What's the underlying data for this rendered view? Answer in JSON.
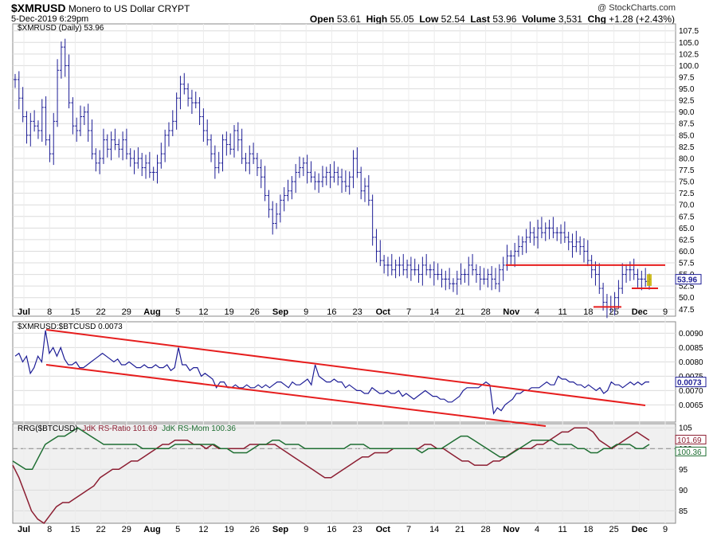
{
  "header": {
    "symbol": "$XMRUSD",
    "name": "Monero to US Dollar",
    "exchange": "CRYPT",
    "date": "5-Dec-2019 6:29pm",
    "watermark": "@ StockCharts.com",
    "open_label": "Open",
    "open": "53.61",
    "high_label": "High",
    "high": "55.05",
    "low_label": "Low",
    "low": "52.54",
    "last_label": "Last",
    "last": "53.96",
    "volume_label": "Volume",
    "volume": "3,531",
    "chg_label": "Chg",
    "chg": "+1.28 (+2.43%)"
  },
  "colors": {
    "series": "#1e1e96",
    "trend": "#e61e1e",
    "ratio": "#8c1e32",
    "momentum": "#1e6e32",
    "panel_bg": "#f0f0f0",
    "last_box": "#c8b400"
  },
  "chart_data": [
    {
      "type": "ohlc",
      "legend": "$XMRUSD (Daily) 53.96",
      "last_value_label": "53.96",
      "ylim": [
        46,
        109
      ],
      "y_ticks": [
        "107.5",
        "105.0",
        "102.5",
        "100.0",
        "97.5",
        "95.0",
        "92.5",
        "90.0",
        "87.5",
        "85.0",
        "82.5",
        "80.0",
        "77.5",
        "75.0",
        "72.5",
        "70.0",
        "67.5",
        "65.0",
        "62.5",
        "60.0",
        "57.5",
        "55.0",
        "52.5",
        "50.0",
        "47.5"
      ],
      "x_ticks": [
        "Jul",
        "8",
        "15",
        "22",
        "29",
        "Aug",
        "5",
        "12",
        "19",
        "26",
        "Sep",
        "9",
        "16",
        "23",
        "Oct",
        "7",
        "14",
        "21",
        "28",
        "Nov",
        "4",
        "11",
        "18",
        "25",
        "Dec",
        "9"
      ],
      "close_approx": [
        97,
        93,
        89,
        85,
        88,
        87,
        86,
        91,
        84,
        81,
        88,
        99,
        104,
        100,
        92,
        87,
        86,
        89,
        90,
        86,
        81,
        79,
        80,
        84,
        82,
        84,
        83,
        82,
        84,
        81,
        80,
        79,
        80,
        78,
        79,
        77,
        77,
        79,
        81,
        85,
        86,
        88,
        93,
        96,
        95,
        93,
        92,
        92,
        89,
        86,
        84,
        81,
        78,
        79,
        84,
        83,
        82,
        86,
        84,
        80,
        79,
        81,
        80,
        78,
        76,
        72,
        69,
        66,
        68,
        71,
        72,
        73,
        75,
        77,
        78,
        79,
        77,
        76,
        75,
        75,
        76,
        77,
        76,
        77,
        76,
        75,
        74,
        76,
        80,
        77,
        73,
        74,
        71,
        63,
        60,
        58,
        57,
        57,
        56,
        57,
        57,
        56,
        57,
        56,
        56,
        55,
        57,
        56,
        56,
        55,
        55,
        54,
        54,
        53,
        53,
        54,
        55,
        55,
        57,
        56,
        55,
        54,
        54,
        55,
        54,
        53,
        56,
        57,
        59,
        59,
        60,
        61,
        62,
        63,
        64,
        63,
        65,
        64,
        65,
        65,
        64,
        64,
        64,
        63,
        62,
        61,
        62,
        61,
        60,
        58,
        56,
        55,
        52,
        49,
        48,
        48,
        50,
        52,
        55,
        56,
        56,
        55,
        54,
        54,
        53.5,
        53.96
      ],
      "support_resistance": [
        57,
        52,
        48
      ]
    },
    {
      "type": "line",
      "legend": "$XMRUSD:$BTCUSD 0.0073",
      "last_value_label": "0.0073",
      "ylim": [
        0.0059,
        0.0094
      ],
      "y_ticks": [
        "0.0090",
        "0.0085",
        "0.0080",
        "0.0075",
        "0.0070",
        "0.0065"
      ],
      "values": [
        0.0082,
        0.0083,
        0.008,
        0.0082,
        0.0076,
        0.0078,
        0.0082,
        0.008,
        0.0091,
        0.0083,
        0.0085,
        0.0082,
        0.0085,
        0.0081,
        0.0079,
        0.0079,
        0.008,
        0.0078,
        0.0078,
        0.0079,
        0.008,
        0.0081,
        0.0082,
        0.0083,
        0.0082,
        0.0081,
        0.008,
        0.0081,
        0.0079,
        0.0079,
        0.008,
        0.0079,
        0.0078,
        0.0078,
        0.0079,
        0.0078,
        0.0078,
        0.0079,
        0.0078,
        0.0078,
        0.0079,
        0.0077,
        0.0078,
        0.0085,
        0.0079,
        0.0079,
        0.0077,
        0.0078,
        0.0078,
        0.0075,
        0.0076,
        0.0075,
        0.0074,
        0.0071,
        0.0073,
        0.0073,
        0.0071,
        0.0071,
        0.0072,
        0.0071,
        0.0071,
        0.0072,
        0.0071,
        0.0071,
        0.0072,
        0.0071,
        0.0072,
        0.0071,
        0.0072,
        0.0073,
        0.0073,
        0.0072,
        0.0071,
        0.0073,
        0.0072,
        0.0072,
        0.0073,
        0.0074,
        0.0072,
        0.0079,
        0.0075,
        0.0074,
        0.0073,
        0.0073,
        0.0074,
        0.0073,
        0.0073,
        0.0071,
        0.0072,
        0.0071,
        0.007,
        0.007,
        0.0069,
        0.0069,
        0.0071,
        0.007,
        0.0069,
        0.0069,
        0.007,
        0.0069,
        0.0069,
        0.007,
        0.0068,
        0.0069,
        0.0068,
        0.0067,
        0.0068,
        0.0069,
        0.007,
        0.0069,
        0.0068,
        0.0068,
        0.0067,
        0.0067,
        0.0066,
        0.0066,
        0.0067,
        0.0068,
        0.007,
        0.0071,
        0.0071,
        0.0071,
        0.0071,
        0.0072,
        0.0073,
        0.0072,
        0.0062,
        0.0064,
        0.0063,
        0.0065,
        0.0066,
        0.0067,
        0.0069,
        0.0069,
        0.007,
        0.007,
        0.0071,
        0.0071,
        0.0071,
        0.0072,
        0.0073,
        0.0072,
        0.0072,
        0.0075,
        0.0074,
        0.0074,
        0.0073,
        0.0073,
        0.0072,
        0.0072,
        0.0071,
        0.0072,
        0.0071,
        0.007,
        0.0071,
        0.0069,
        0.007,
        0.0073,
        0.0072,
        0.0072,
        0.0071,
        0.0072,
        0.0073,
        0.0072,
        0.0073,
        0.0072,
        0.0073,
        0.0073
      ]
    },
    {
      "type": "line",
      "legend_prefix": "RRG($BTCUSD)",
      "series": [
        {
          "name": "JdK RS-Ratio 101.69",
          "last_value_label": "101.69",
          "values": [
            96,
            93,
            89,
            85,
            83,
            82,
            84,
            86,
            87,
            87,
            88,
            89,
            90,
            91,
            93,
            94,
            95,
            95,
            96,
            97,
            97,
            98,
            99,
            100,
            101,
            101,
            102,
            102,
            102,
            101,
            101,
            100,
            101,
            100,
            100,
            100,
            100,
            100,
            101,
            101,
            101,
            101,
            101,
            100,
            99,
            98,
            97,
            96,
            95,
            94,
            93,
            93,
            94,
            95,
            96,
            97,
            98,
            98,
            99,
            99,
            99,
            100,
            100,
            100,
            100,
            100,
            101,
            101,
            100,
            100,
            99,
            98,
            97,
            97,
            96,
            96,
            96,
            97,
            97,
            98,
            99,
            100,
            100,
            100,
            101,
            101,
            102,
            103,
            104,
            104,
            105,
            105,
            105,
            104,
            102,
            101,
            100,
            101,
            102,
            103,
            104,
            103,
            102
          ]
        },
        {
          "name": "JdK RS-Mom 100.36",
          "last_value_label": "100.36",
          "values": [
            97,
            96,
            95,
            95,
            98,
            101,
            102,
            103,
            103,
            104,
            105,
            104,
            103,
            102,
            101,
            101,
            101,
            101,
            101,
            101,
            100,
            100,
            100,
            100,
            100,
            101,
            101,
            101,
            101,
            101,
            101,
            101,
            100,
            100,
            99,
            99,
            99,
            100,
            101,
            101,
            102,
            102,
            101,
            101,
            101,
            100,
            100,
            100,
            100,
            100,
            100,
            100,
            101,
            101,
            101,
            100,
            100,
            100,
            100,
            100,
            100,
            100,
            100,
            99,
            100,
            100,
            100,
            101,
            102,
            103,
            103,
            102,
            101,
            100,
            99,
            98,
            98,
            99,
            100,
            101,
            102,
            102,
            102,
            102,
            101,
            101,
            101,
            100,
            100,
            99,
            99,
            100,
            100,
            101,
            101,
            101,
            100,
            100,
            101
          ]
        }
      ],
      "ylim": [
        82,
        106
      ],
      "y_ticks": [
        "105",
        "100",
        "95",
        "90",
        "85"
      ]
    }
  ]
}
